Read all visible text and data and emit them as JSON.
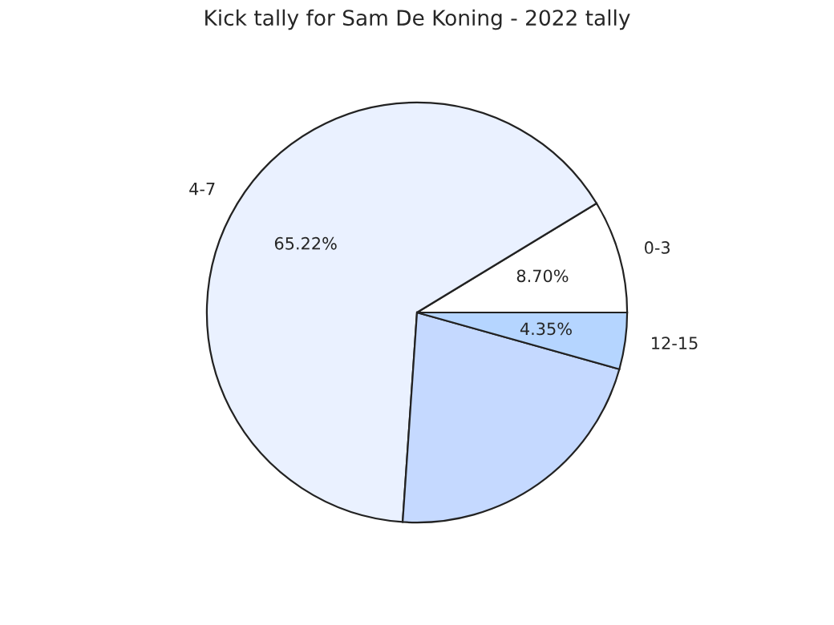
{
  "chart_data": {
    "type": "pie",
    "title": "Kick tally for Sam De Koning - 2022 tally",
    "categories": [
      "0-3",
      "4-7",
      null,
      "12-15"
    ],
    "values": [
      8.7,
      65.22,
      21.74,
      4.35
    ],
    "value_labels": [
      "8.70%",
      "65.22%",
      null,
      "4.35%"
    ],
    "colors": [
      "#ffffff",
      "#eaf1ff",
      "#c5d9ff",
      "#b5d5ff"
    ],
    "legend": false
  }
}
